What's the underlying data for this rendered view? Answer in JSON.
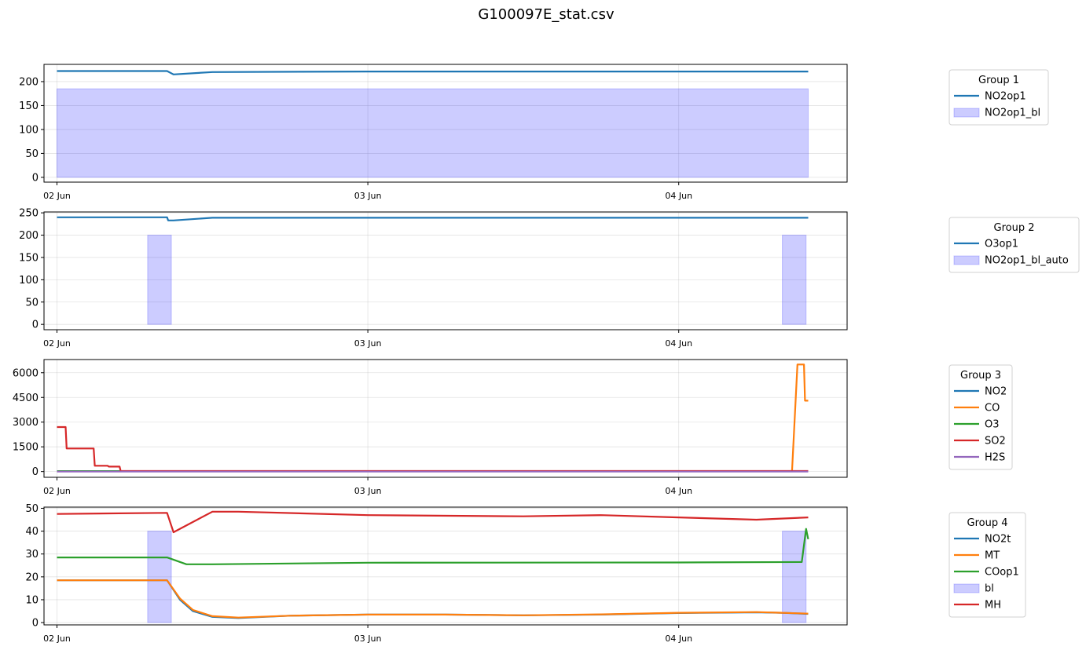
{
  "figure": {
    "title": "G100097E_stat.csv"
  },
  "chart_data": [
    {
      "type": "line",
      "panel": 1,
      "xlim": [
        "2024-06-01T23:00",
        "2024-06-04T13:00"
      ],
      "ylim": [
        -10,
        236
      ],
      "x_ticks": [
        "02 Jun",
        "03 Jun",
        "04 Jun"
      ],
      "y_ticks": [
        0,
        50,
        100,
        150,
        200
      ],
      "grid": true,
      "legend": {
        "title": "Group 1",
        "placement": "right",
        "entries": [
          {
            "label": "NO2op1",
            "kind": "line",
            "color": "#1f77b4"
          },
          {
            "label": "NO2op1_bl",
            "kind": "patch",
            "color": "#0000ff"
          }
        ]
      },
      "series": [
        {
          "name": "NO2op1",
          "kind": "line",
          "color": "#1f77b4",
          "x": [
            "2024-06-02T00:00",
            "2024-06-02T08:00",
            "2024-06-02T08:30",
            "2024-06-02T09:00",
            "2024-06-02T12:00",
            "2024-06-03T00:00",
            "2024-06-04T00:00",
            "2024-06-04T10:00"
          ],
          "y": [
            222,
            222,
            222,
            215,
            220,
            221,
            221,
            221
          ]
        },
        {
          "name": "NO2op1_bl",
          "kind": "band",
          "color": "#0000ff",
          "bands": [
            {
              "x0": "2024-06-02T00:00",
              "x1": "2024-06-04T10:00",
              "y": 185
            }
          ]
        }
      ]
    },
    {
      "type": "line",
      "panel": 2,
      "xlim": [
        "2024-06-01T23:00",
        "2024-06-04T13:00"
      ],
      "ylim": [
        -12,
        252
      ],
      "x_ticks": [
        "02 Jun",
        "03 Jun",
        "04 Jun"
      ],
      "y_ticks": [
        0,
        50,
        100,
        150,
        200,
        250
      ],
      "grid": true,
      "legend": {
        "title": "Group 2",
        "placement": "right",
        "entries": [
          {
            "label": "O3op1",
            "kind": "line",
            "color": "#1f77b4"
          },
          {
            "label": "NO2op1_bl_auto",
            "kind": "patch",
            "color": "#0000ff"
          }
        ]
      },
      "series": [
        {
          "name": "O3op1",
          "kind": "line",
          "color": "#1f77b4",
          "x": [
            "2024-06-02T00:00",
            "2024-06-02T08:30",
            "2024-06-02T08:35",
            "2024-06-02T09:00",
            "2024-06-02T12:00",
            "2024-06-03T00:00",
            "2024-06-04T00:00",
            "2024-06-04T10:00"
          ],
          "y": [
            240,
            240,
            233,
            233,
            239,
            239,
            239,
            239
          ]
        },
        {
          "name": "NO2op1_bl_auto",
          "kind": "band",
          "color": "#0000ff",
          "bands": [
            {
              "x0": "2024-06-02T07:00",
              "x1": "2024-06-02T08:50",
              "y": 200
            },
            {
              "x0": "2024-06-04T08:00",
              "x1": "2024-06-04T09:50",
              "y": 200
            }
          ]
        }
      ]
    },
    {
      "type": "line",
      "panel": 3,
      "xlim": [
        "2024-06-01T23:00",
        "2024-06-04T13:00"
      ],
      "ylim": [
        -350,
        6800
      ],
      "x_ticks": [
        "02 Jun",
        "03 Jun",
        "04 Jun"
      ],
      "y_ticks": [
        0,
        1500,
        3000,
        4500,
        6000
      ],
      "grid": true,
      "legend": {
        "title": "Group 3",
        "placement": "right",
        "entries": [
          {
            "label": "NO2",
            "kind": "line",
            "color": "#1f77b4"
          },
          {
            "label": "CO",
            "kind": "line",
            "color": "#ff7f0e"
          },
          {
            "label": "O3",
            "kind": "line",
            "color": "#2ca02c"
          },
          {
            "label": "SO2",
            "kind": "line",
            "color": "#d62728"
          },
          {
            "label": "H2S",
            "kind": "line",
            "color": "#9467bd"
          }
        ]
      },
      "series": [
        {
          "name": "NO2",
          "kind": "line",
          "color": "#1f77b4",
          "x": [
            "2024-06-02T00:00",
            "2024-06-04T10:00"
          ],
          "y": [
            20,
            20
          ]
        },
        {
          "name": "CO",
          "kind": "line",
          "color": "#ff7f0e",
          "x": [
            "2024-06-02T00:00",
            "2024-06-04T08:45",
            "2024-06-04T09:10",
            "2024-06-04T09:40",
            "2024-06-04T09:45",
            "2024-06-04T10:00"
          ],
          "y": [
            20,
            20,
            6500,
            6500,
            4300,
            4300
          ]
        },
        {
          "name": "O3",
          "kind": "line",
          "color": "#2ca02c",
          "x": [
            "2024-06-02T00:00",
            "2024-06-04T10:00"
          ],
          "y": [
            25,
            25
          ]
        },
        {
          "name": "SO2",
          "kind": "line",
          "color": "#d62728",
          "x": [
            "2024-06-02T00:00",
            "2024-06-02T00:40",
            "2024-06-02T00:45",
            "2024-06-02T02:50",
            "2024-06-02T02:55",
            "2024-06-02T03:55",
            "2024-06-02T04:00",
            "2024-06-02T04:50",
            "2024-06-02T04:55",
            "2024-06-04T10:00"
          ],
          "y": [
            2700,
            2700,
            1400,
            1400,
            350,
            350,
            300,
            300,
            30,
            30
          ]
        },
        {
          "name": "H2S",
          "kind": "line",
          "color": "#9467bd",
          "x": [
            "2024-06-02T00:00",
            "2024-06-04T10:00"
          ],
          "y": [
            0,
            0
          ]
        }
      ]
    },
    {
      "type": "line",
      "panel": 4,
      "xlim": [
        "2024-06-01T23:00",
        "2024-06-04T13:00"
      ],
      "ylim": [
        -1,
        50.5
      ],
      "x_ticks": [
        "02 Jun",
        "03 Jun",
        "04 Jun"
      ],
      "y_ticks": [
        0,
        10,
        20,
        30,
        40,
        50
      ],
      "grid": true,
      "legend": {
        "title": "Group 4",
        "placement": "right",
        "entries": [
          {
            "label": "NO2t",
            "kind": "line",
            "color": "#1f77b4"
          },
          {
            "label": "MT",
            "kind": "line",
            "color": "#ff7f0e"
          },
          {
            "label": "COop1",
            "kind": "line",
            "color": "#2ca02c"
          },
          {
            "label": "bl",
            "kind": "patch",
            "color": "#0000ff"
          },
          {
            "label": "MH",
            "kind": "line",
            "color": "#d62728"
          }
        ]
      },
      "series": [
        {
          "name": "bl",
          "kind": "band",
          "color": "#0000ff",
          "bands": [
            {
              "x0": "2024-06-02T07:00",
              "x1": "2024-06-02T08:50",
              "y": 40
            },
            {
              "x0": "2024-06-04T08:00",
              "x1": "2024-06-04T09:50",
              "y": 40
            }
          ]
        },
        {
          "name": "NO2t",
          "kind": "line",
          "color": "#1f77b4",
          "x": [
            "2024-06-02T00:00",
            "2024-06-02T08:30",
            "2024-06-02T09:30",
            "2024-06-02T10:30",
            "2024-06-02T12:00",
            "2024-06-02T14:00",
            "2024-06-02T18:00",
            "2024-06-03T00:00",
            "2024-06-03T06:00",
            "2024-06-03T12:00",
            "2024-06-03T18:00",
            "2024-06-04T00:00",
            "2024-06-04T06:00",
            "2024-06-04T08:00",
            "2024-06-04T10:00"
          ],
          "y": [
            18.5,
            18.5,
            10,
            5,
            2.5,
            2,
            3,
            3.5,
            3.5,
            3.2,
            3.5,
            4.2,
            4.5,
            4.3,
            3.8
          ]
        },
        {
          "name": "MT",
          "kind": "line",
          "color": "#ff7f0e",
          "x": [
            "2024-06-02T00:00",
            "2024-06-02T08:30",
            "2024-06-02T09:30",
            "2024-06-02T10:30",
            "2024-06-02T12:00",
            "2024-06-02T14:00",
            "2024-06-02T18:00",
            "2024-06-03T00:00",
            "2024-06-03T06:00",
            "2024-06-03T12:00",
            "2024-06-03T18:00",
            "2024-06-04T00:00",
            "2024-06-04T06:00",
            "2024-06-04T08:00",
            "2024-06-04T10:00"
          ],
          "y": [
            18.5,
            18.5,
            10.5,
            5.5,
            2.8,
            2.2,
            3,
            3.5,
            3.5,
            3.2,
            3.6,
            4.3,
            4.6,
            4.3,
            3.9
          ]
        },
        {
          "name": "COop1",
          "kind": "line",
          "color": "#2ca02c",
          "x": [
            "2024-06-02T00:00",
            "2024-06-02T08:30",
            "2024-06-02T10:00",
            "2024-06-02T12:00",
            "2024-06-03T00:00",
            "2024-06-04T00:00",
            "2024-06-04T09:30",
            "2024-06-04T09:50",
            "2024-06-04T10:00"
          ],
          "y": [
            28.5,
            28.5,
            25.5,
            25.5,
            26.2,
            26.3,
            26.5,
            41,
            36.5
          ]
        },
        {
          "name": "MH",
          "kind": "line",
          "color": "#d62728",
          "x": [
            "2024-06-02T00:00",
            "2024-06-02T08:30",
            "2024-06-02T09:00",
            "2024-06-02T12:00",
            "2024-06-02T14:00",
            "2024-06-03T00:00",
            "2024-06-03T12:00",
            "2024-06-03T18:00",
            "2024-06-04T00:00",
            "2024-06-04T06:00",
            "2024-06-04T10:00"
          ],
          "y": [
            47.5,
            48,
            39.5,
            48.5,
            48.5,
            47,
            46.5,
            47,
            46,
            45,
            46
          ]
        }
      ]
    }
  ]
}
